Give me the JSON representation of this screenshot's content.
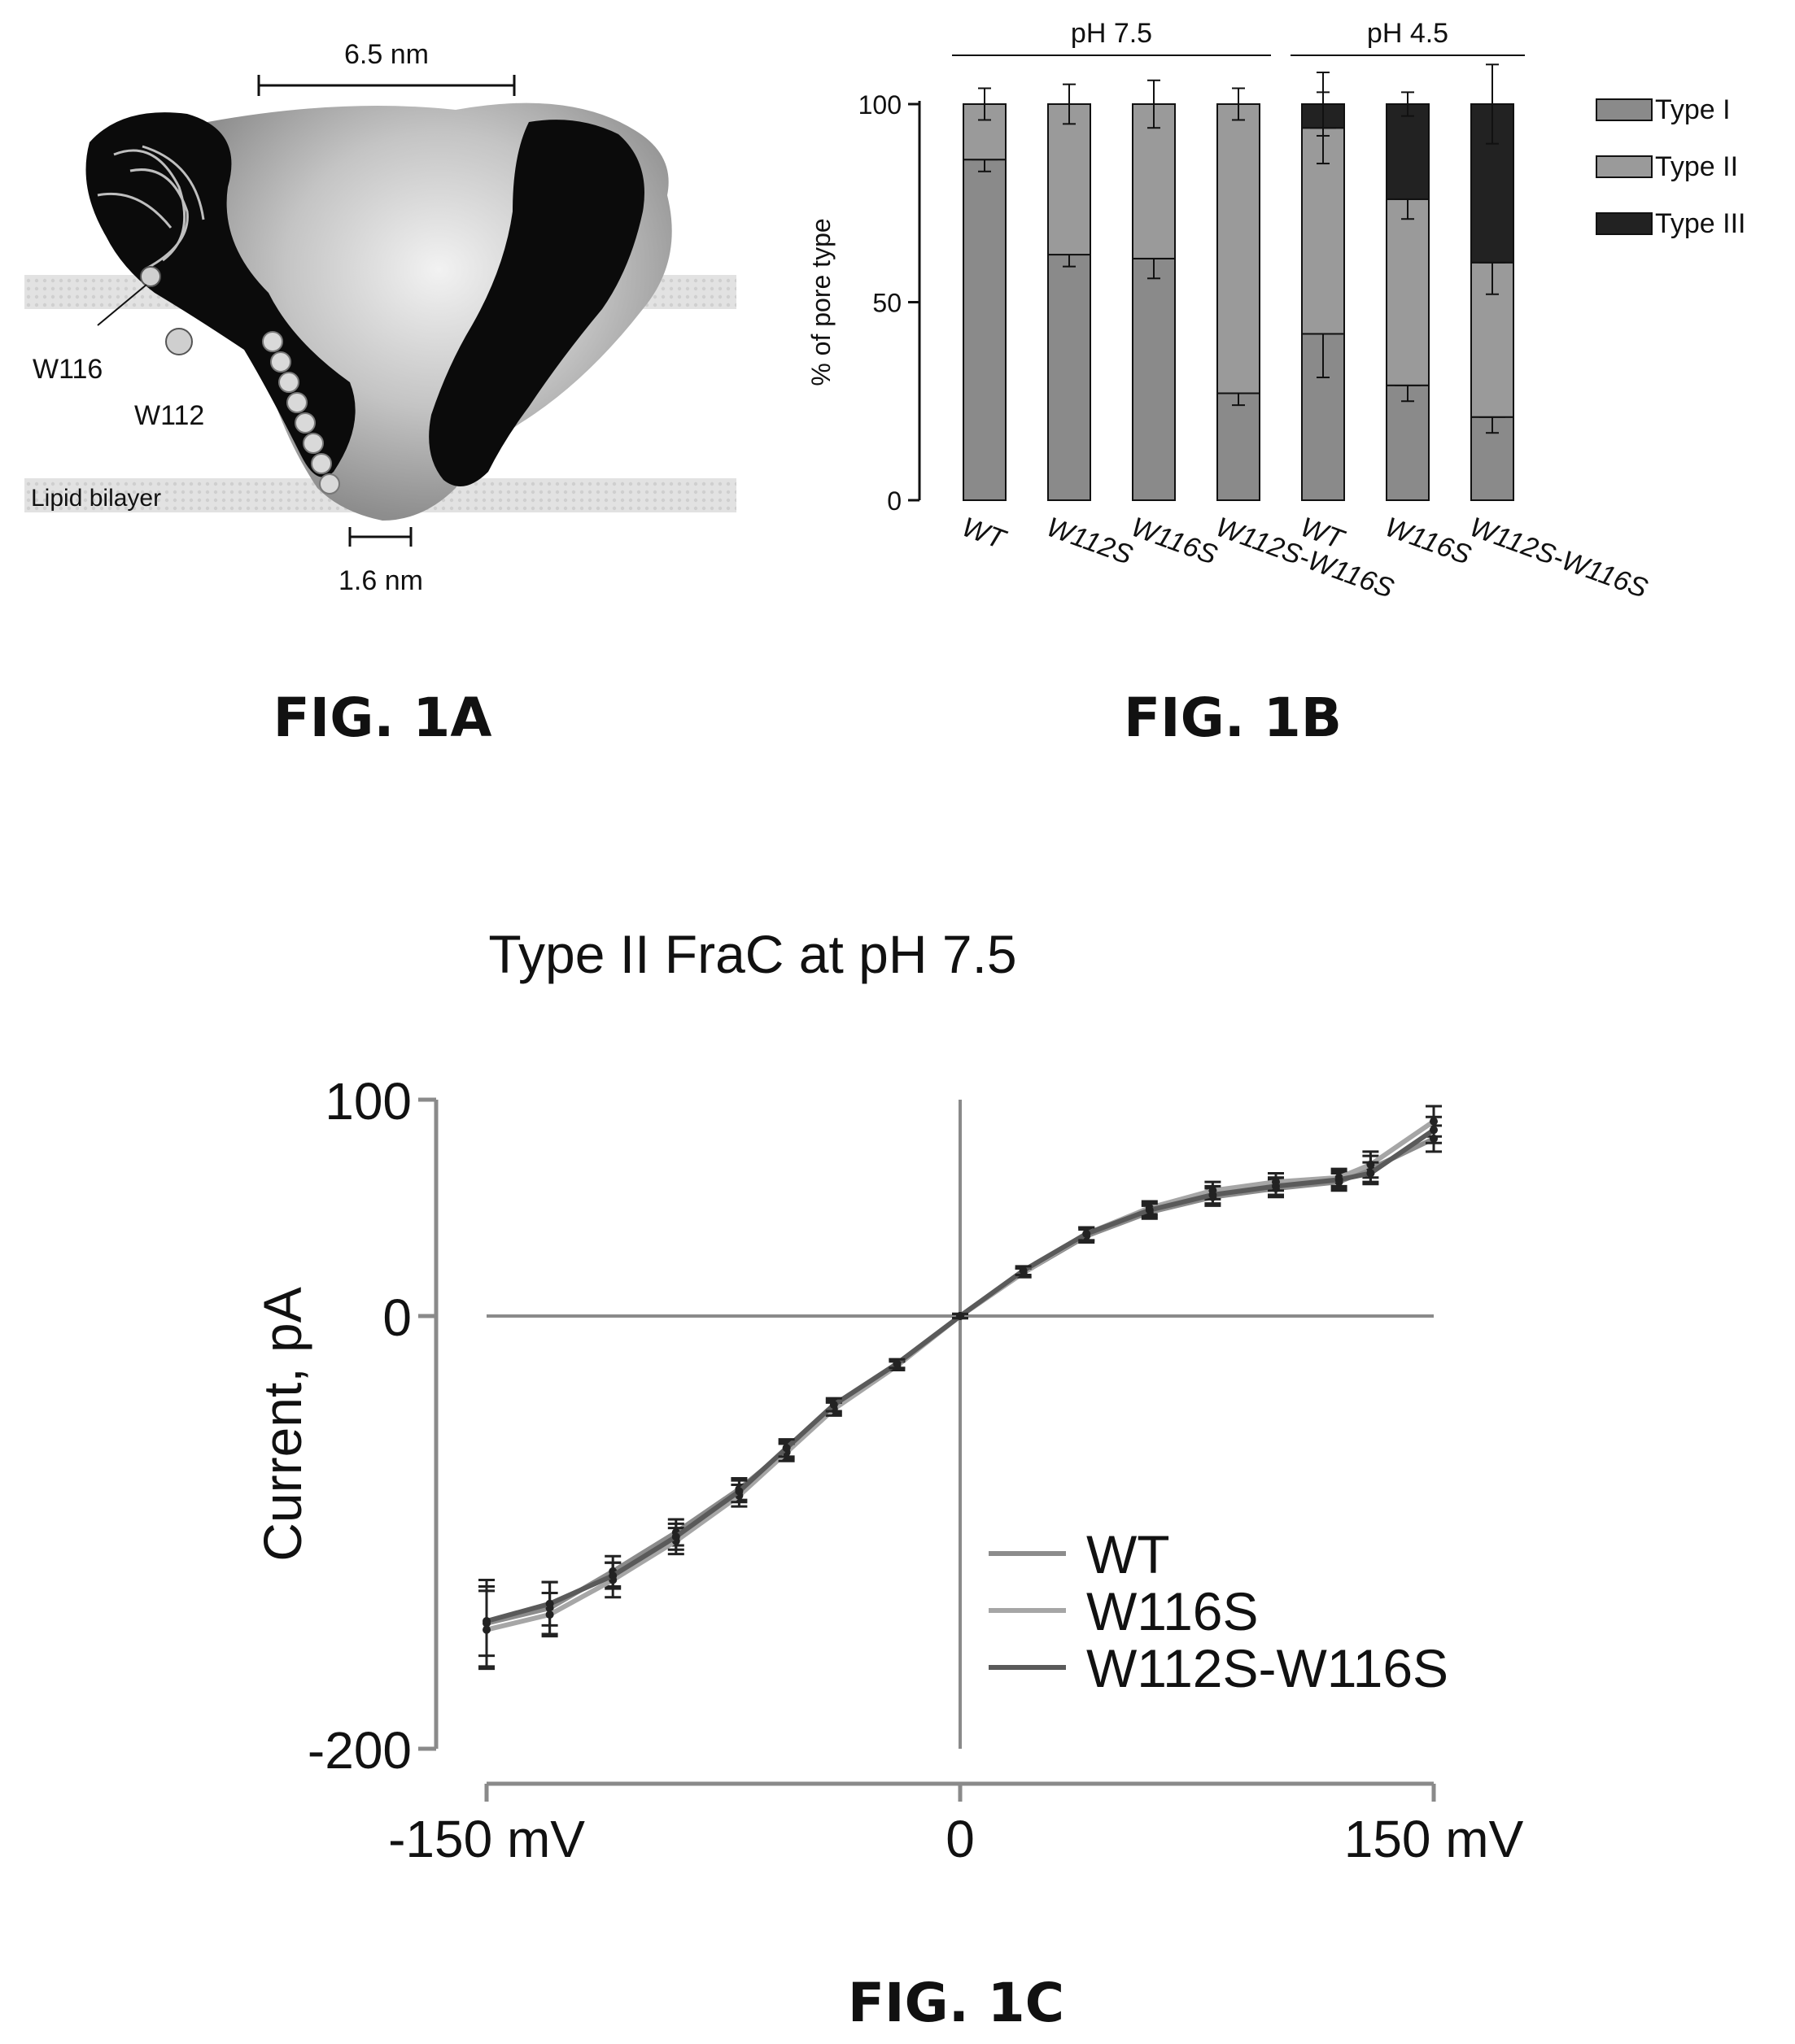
{
  "figures": {
    "fig1a": {
      "caption": "FIG. 1A",
      "scale_top": "6.5 nm",
      "scale_bottom": "1.6 nm",
      "label_w116": "W116",
      "label_w112": "W112",
      "label_bilayer": "Lipid bilayer"
    },
    "fig1b": {
      "caption": "FIG. 1B"
    },
    "fig1c": {
      "caption": "FIG. 1C"
    }
  },
  "chart_data": [
    {
      "id": "fig1b",
      "type": "bar",
      "stacked": true,
      "ylabel": "% of pore type",
      "ylim": [
        0,
        100
      ],
      "yticks": [
        "0",
        "50",
        "100"
      ],
      "groups": [
        {
          "label": "pH 7.5",
          "categories": [
            "WT",
            "W112S",
            "W116S",
            "W112S-W116S"
          ]
        },
        {
          "label": "pH 4.5",
          "categories": [
            "WT",
            "W116S",
            "W112S-W116S"
          ]
        }
      ],
      "categories": [
        "WT",
        "W112S",
        "W116S",
        "W112S-W116S",
        "WT",
        "W116S",
        "W112S-W116S"
      ],
      "series": [
        {
          "name": "Type I",
          "color": "#8a8a8a",
          "values": [
            86,
            62,
            61,
            27,
            42,
            29,
            21
          ],
          "errors": [
            3,
            3,
            5,
            3,
            11,
            4,
            4
          ]
        },
        {
          "name": "Type II",
          "color": "#9a9a9a",
          "values": [
            14,
            38,
            39,
            73,
            52,
            47,
            39
          ],
          "errors": [
            4,
            5,
            6,
            4,
            9,
            5,
            8
          ]
        },
        {
          "name": "Type III",
          "color": "#222222",
          "values": [
            0,
            0,
            0,
            0,
            6,
            24,
            40
          ],
          "errors": [
            0,
            0,
            0,
            0,
            8,
            3,
            10
          ]
        }
      ],
      "legend_position": "right"
    },
    {
      "id": "fig1c",
      "type": "line",
      "title": "Type II FraC at pH 7.5",
      "ylabel": "Current, pA",
      "xlim": [
        -150,
        150
      ],
      "ylim": [
        -200,
        100
      ],
      "x_tick_labels": [
        "-150 mV",
        "0",
        "150 mV"
      ],
      "y_tick_labels": [
        "100",
        "0",
        "-200"
      ],
      "x": [
        -150,
        -130,
        -110,
        -90,
        -70,
        -55,
        -40,
        -20,
        0,
        20,
        40,
        60,
        80,
        100,
        120,
        130,
        150
      ],
      "series": [
        {
          "name": "WT",
          "color": "#8c8c8c",
          "values": [
            -142,
            -135,
            -118,
            -100,
            -80,
            -62,
            -42,
            -22,
            0,
            20,
            37,
            48,
            55,
            59,
            62,
            68,
            82
          ],
          "errors": [
            20,
            12,
            7,
            6,
            5,
            4,
            3,
            2,
            1,
            2,
            3,
            3,
            4,
            4,
            4,
            6,
            6
          ]
        },
        {
          "name": "W116S",
          "color": "#a6a6a6",
          "values": [
            -145,
            -138,
            -122,
            -104,
            -83,
            -63,
            -43,
            -23,
            0,
            20,
            38,
            50,
            58,
            62,
            64,
            70,
            90
          ],
          "errors": [
            18,
            10,
            8,
            6,
            5,
            4,
            3,
            2,
            1,
            2,
            3,
            3,
            4,
            4,
            4,
            6,
            7
          ]
        },
        {
          "name": "W112S-W116S",
          "color": "#5a5a5a",
          "values": [
            -141,
            -133,
            -120,
            -102,
            -81,
            -61,
            -41,
            -22,
            0,
            21,
            38,
            49,
            56,
            60,
            63,
            66,
            86
          ],
          "errors": [
            16,
            10,
            6,
            6,
            5,
            4,
            3,
            2,
            1,
            2,
            3,
            3,
            4,
            4,
            4,
            5,
            6
          ]
        }
      ],
      "legend_position": "bottom-right",
      "zero_lines": true
    }
  ]
}
